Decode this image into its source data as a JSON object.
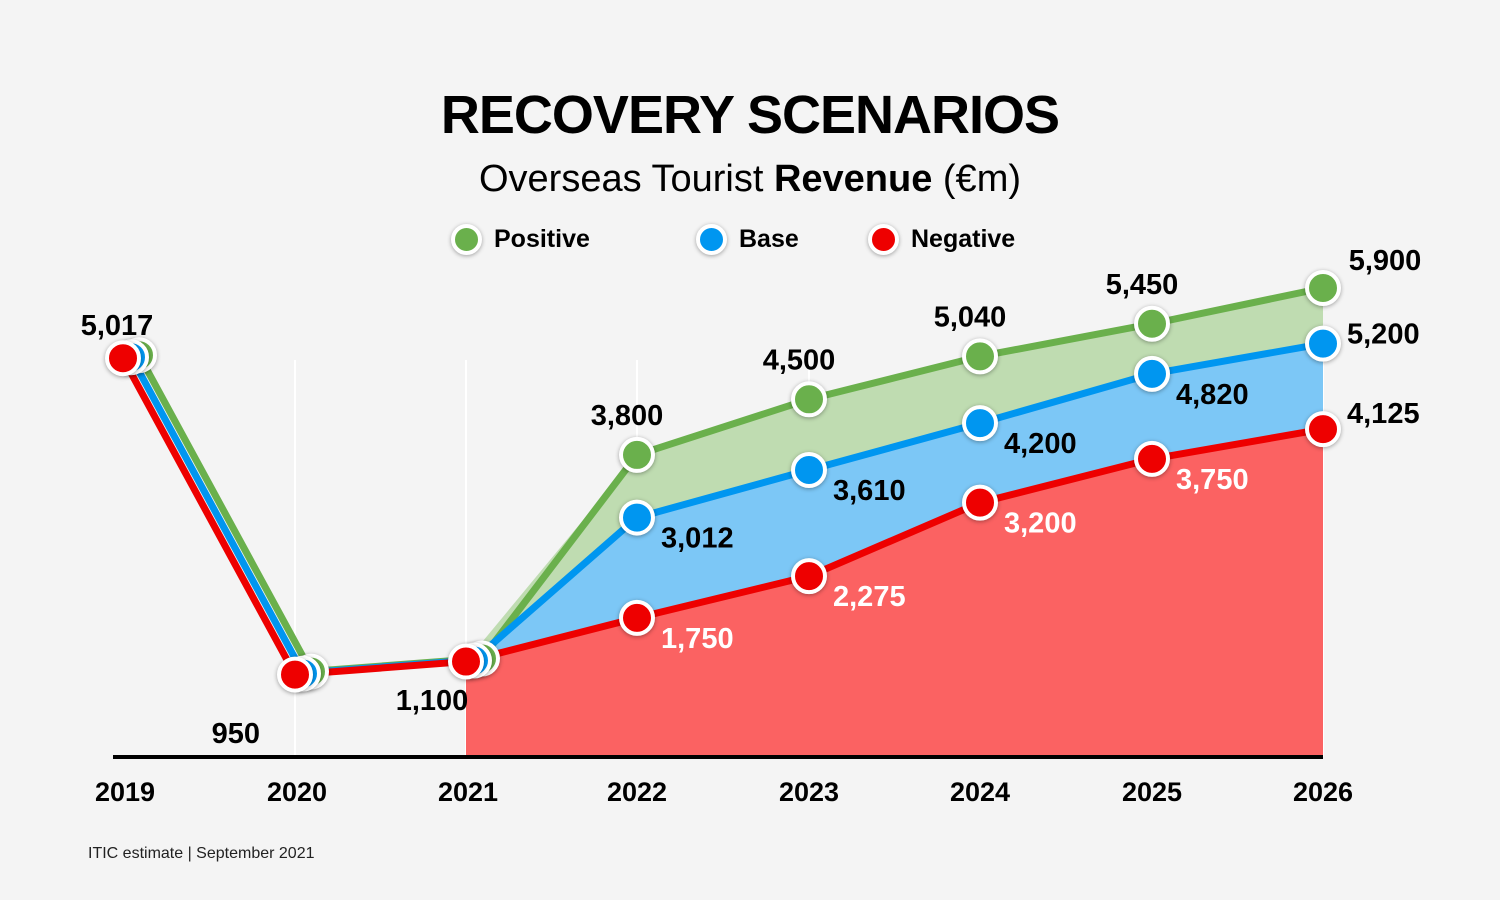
{
  "title": "RECOVERY SCENARIOS",
  "subtitle_plain": "Overseas Tourist",
  "subtitle_bold": "Revenue",
  "subtitle_unit": "(€m)",
  "footer": "ITIC estimate | September 2021",
  "colors": {
    "positive": "#6ab04c",
    "base": "#0096f0",
    "negative": "#ee0000",
    "positive_fill": "#bfdcb1",
    "base_fill": "#7cc7f6",
    "negative_fill": "#fb6262"
  },
  "chart_data": {
    "type": "area",
    "x": [
      "2019",
      "2020",
      "2021",
      "2022",
      "2023",
      "2024",
      "2025",
      "2026"
    ],
    "series": [
      {
        "name": "Positive",
        "values": [
          5017,
          950,
          1100,
          3800,
          4500,
          5040,
          5450,
          5900
        ],
        "labels": [
          "5,017",
          "950",
          "1,100",
          "3,800",
          "4,500",
          "5,040",
          "5,450",
          "5,900"
        ]
      },
      {
        "name": "Base",
        "values": [
          5017,
          950,
          1100,
          3012,
          3610,
          4200,
          4820,
          5200
        ],
        "labels": [
          "",
          "",
          "",
          "3,012",
          "3,610",
          "4,200",
          "4,820",
          "5,200"
        ]
      },
      {
        "name": "Negative",
        "values": [
          5017,
          950,
          1100,
          1750,
          2275,
          3200,
          3750,
          4125
        ],
        "labels": [
          "",
          "",
          "",
          "1,750",
          "2,275",
          "3,200",
          "3,750",
          "4,125"
        ]
      }
    ],
    "legend_position": "top",
    "grid": false
  }
}
